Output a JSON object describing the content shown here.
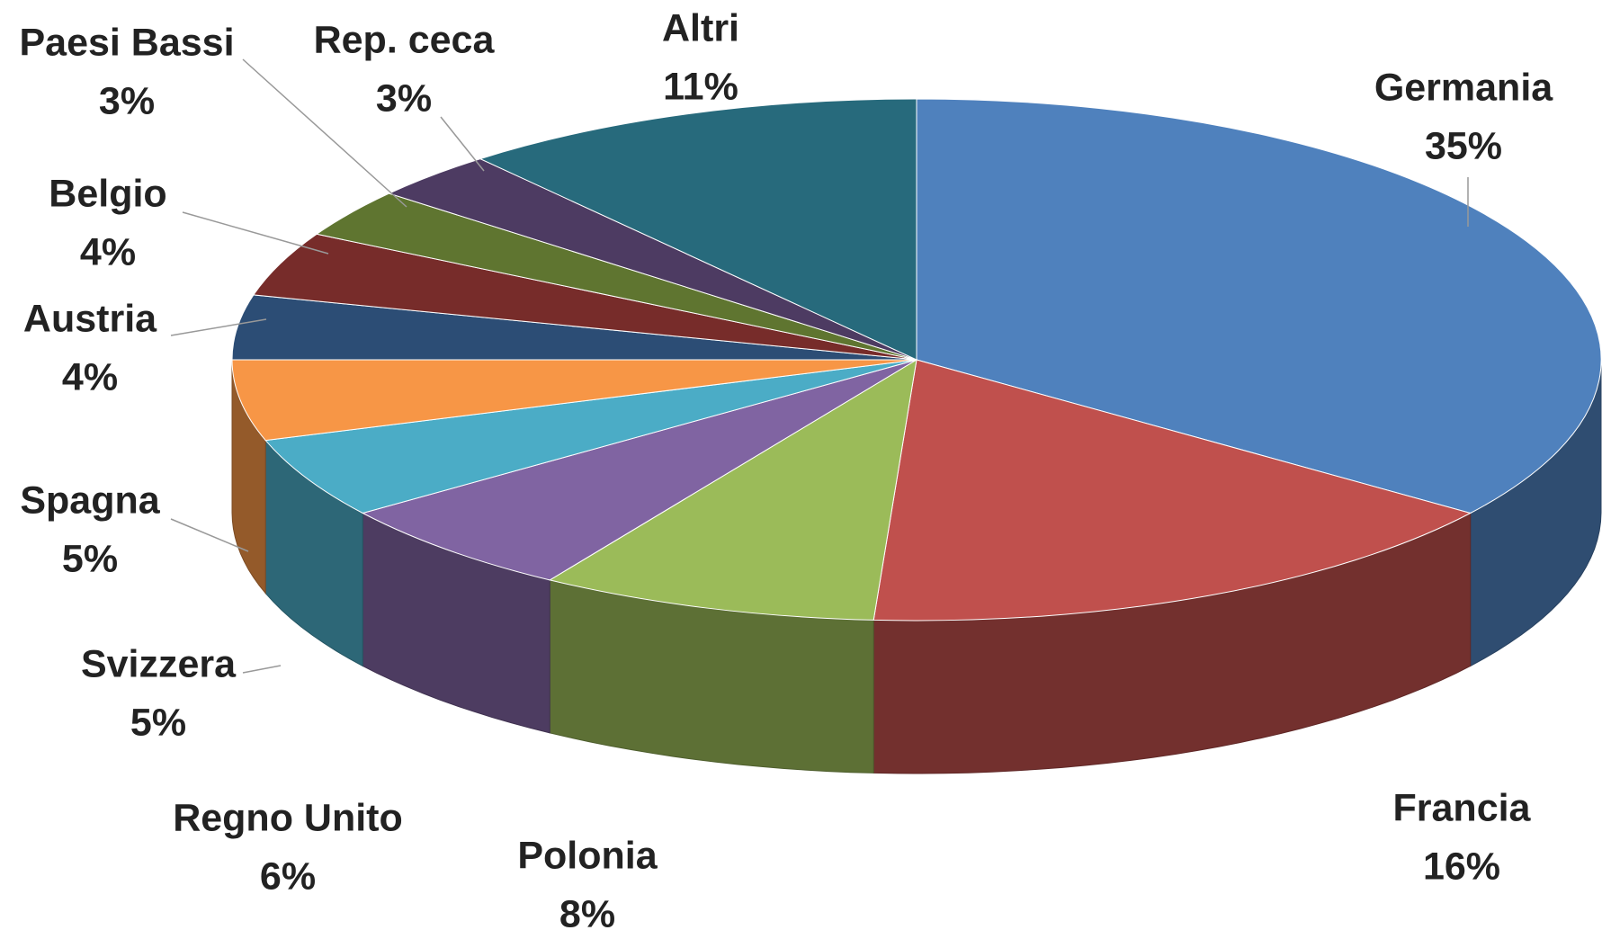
{
  "chart_data": {
    "type": "pie",
    "three_d": true,
    "categories": [
      "Germania",
      "Francia",
      "Polonia",
      "Regno Unito",
      "Svizzera",
      "Spagna",
      "Austria",
      "Belgio",
      "Paesi Bassi",
      "Rep. ceca",
      "Altri"
    ],
    "values": [
      35,
      16,
      8,
      6,
      5,
      5,
      4,
      4,
      3,
      3,
      11
    ],
    "value_labels": [
      "35%",
      "16%",
      "8%",
      "6%",
      "5%",
      "5%",
      "4%",
      "4%",
      "3%",
      "3%",
      "11%"
    ],
    "colors": [
      "#4f81bd",
      "#c0504d",
      "#9bbb59",
      "#8064a2",
      "#4bacc6",
      "#f79646",
      "#2c4d75",
      "#772c2a",
      "#5f7530",
      "#4d3b62",
      "#276a7c"
    ]
  }
}
